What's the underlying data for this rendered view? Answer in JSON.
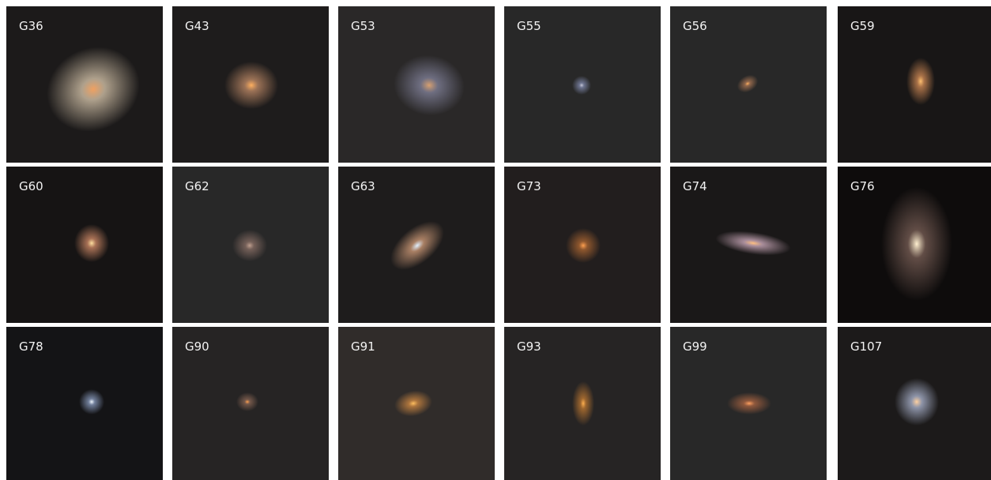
{
  "labels": [
    "G36",
    "G43",
    "G53",
    "G55",
    "G56",
    "G59",
    "G60",
    "G62",
    "G63",
    "G73",
    "G74",
    "G76",
    "G78",
    "G90",
    "G91",
    "G93",
    "G99",
    "G107"
  ]
}
